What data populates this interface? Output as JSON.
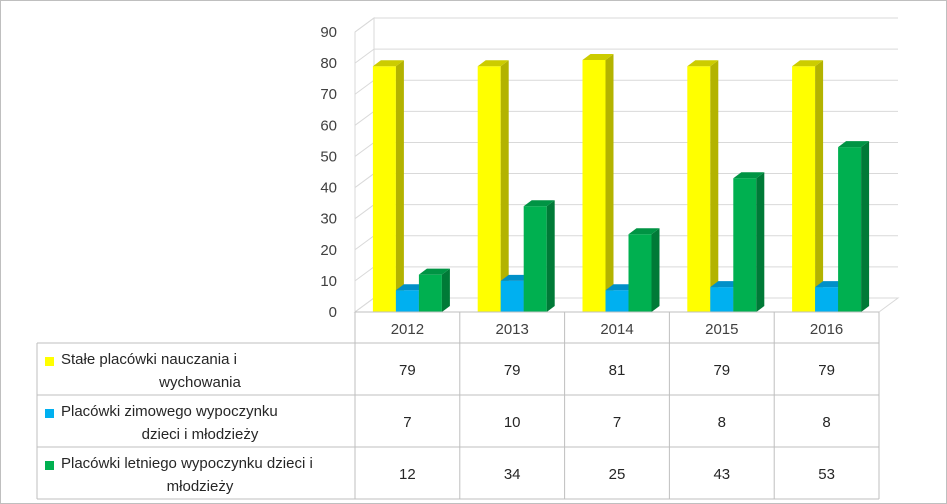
{
  "chart_data": {
    "type": "bar",
    "categories": [
      "2012",
      "2013",
      "2014",
      "2015",
      "2016"
    ],
    "series": [
      {
        "name": "Stałe placówki nauczania i wychowania",
        "name_lines": [
          "Stałe placówki nauczania i",
          "wychowania"
        ],
        "values": [
          79,
          79,
          81,
          79,
          79
        ],
        "color": "#ffff00",
        "side_color": "#b3b300",
        "top_color": "#cccc00"
      },
      {
        "name": "Placówki zimowego wypoczynku dzieci i młodzieży",
        "name_lines": [
          "Placówki zimowego wypoczynku",
          "dzieci i młodzieży"
        ],
        "values": [
          7,
          10,
          7,
          8,
          8
        ],
        "color": "#00b0f0",
        "side_color": "#0078a8",
        "top_color": "#0090c8"
      },
      {
        "name": "Placówki letniego wypoczynku dzieci i młodzieży",
        "name_lines": [
          "Placówki letniego wypoczynku dzieci i",
          "młodzieży"
        ],
        "values": [
          12,
          34,
          25,
          43,
          53
        ],
        "color": "#00b050",
        "side_color": "#007a37",
        "top_color": "#009444"
      }
    ],
    "ylim": [
      0,
      90
    ],
    "yticks": [
      0,
      10,
      20,
      30,
      40,
      50,
      60,
      70,
      80,
      90
    ],
    "grid": true,
    "data_table": true,
    "style": "3d-clustered-column"
  }
}
